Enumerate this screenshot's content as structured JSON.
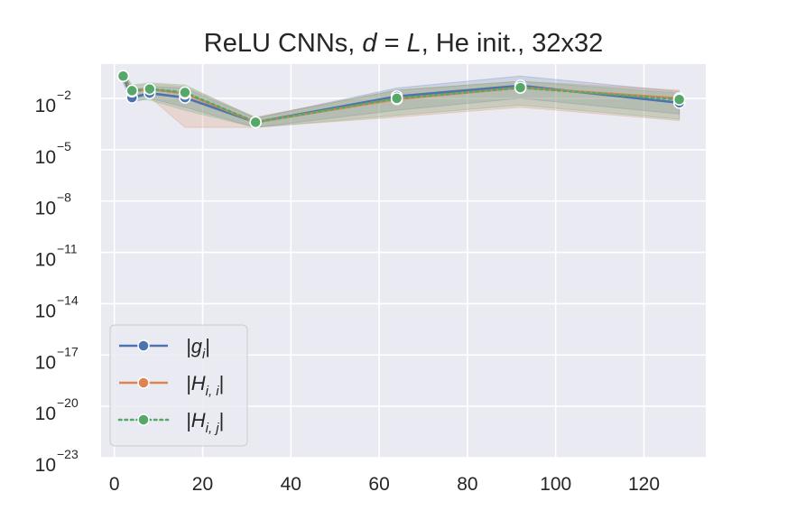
{
  "chart_data": {
    "type": "line",
    "title": "ReLU CNNs, d = L, He init., 32x32",
    "title_parts": {
      "prefix": "ReLU CNNs, ",
      "italic1": "d",
      "eq": " = ",
      "italic2": "L",
      "suffix": ", He init., 32x32"
    },
    "xlabel": "",
    "ylabel": "",
    "xlim": [
      -3,
      134
    ],
    "ylim": [
      1e-23,
      1.0
    ],
    "y_scale": "log",
    "x_ticks": [
      0,
      20,
      40,
      60,
      80,
      100,
      120
    ],
    "x_tick_labels": [
      "0",
      "20",
      "40",
      "60",
      "80",
      "100",
      "120"
    ],
    "y_ticks": [
      1e-23,
      1e-20,
      1e-17,
      1e-14,
      1e-11,
      1e-08,
      1e-05,
      0.01
    ],
    "y_tick_labels": [
      {
        "base": "10",
        "exp": "−23"
      },
      {
        "base": "10",
        "exp": "−20"
      },
      {
        "base": "10",
        "exp": "−17"
      },
      {
        "base": "10",
        "exp": "−14"
      },
      {
        "base": "10",
        "exp": "−11"
      },
      {
        "base": "10",
        "exp": "−8"
      },
      {
        "base": "10",
        "exp": "−5"
      },
      {
        "base": "10",
        "exp": "−2"
      }
    ],
    "grid": true,
    "legend_position": "lower-left",
    "background_color": "#eaeaf2",
    "grid_color": "#ffffff",
    "x": [
      2,
      4,
      8,
      16,
      32,
      64,
      92,
      128
    ],
    "series": [
      {
        "name": "|g_i|",
        "legend_main": "|g",
        "legend_sub": "i",
        "legend_close": "|",
        "color": "#4c72b0",
        "linestyle": "solid",
        "values": [
          0.2,
          0.011,
          0.02,
          0.011,
          0.0004,
          0.013,
          0.055,
          0.0055
        ],
        "lower": [
          0.08,
          0.006,
          0.01,
          0.003,
          0.0002,
          0.002,
          0.01,
          0.0012
        ],
        "upper": [
          0.4,
          0.03,
          0.05,
          0.04,
          0.0007,
          0.04,
          0.2,
          0.025
        ]
      },
      {
        "name": "|H_i,i|",
        "legend_main": "|H",
        "legend_sub": "i, i",
        "legend_close": "|",
        "color": "#dd8452",
        "linestyle": "solid",
        "values": [
          0.2,
          0.025,
          0.035,
          0.019,
          0.0004,
          0.009,
          0.042,
          0.01
        ],
        "lower": [
          0.1,
          0.01,
          0.012,
          0.0002,
          0.0002,
          0.0008,
          0.003,
          0.0005
        ],
        "upper": [
          0.35,
          0.05,
          0.07,
          0.05,
          0.0008,
          0.03,
          0.1,
          0.03
        ]
      },
      {
        "name": "|H_i,j|",
        "legend_main": "|H",
        "legend_sub": "i, j",
        "legend_close": "|",
        "color": "#55a868",
        "linestyle": "dotted",
        "values": [
          0.2,
          0.028,
          0.035,
          0.022,
          0.0004,
          0.01,
          0.042,
          0.0085
        ],
        "lower": [
          0.12,
          0.009,
          0.008,
          0.002,
          0.0002,
          0.001,
          0.004,
          0.0006
        ],
        "upper": [
          0.35,
          0.06,
          0.08,
          0.06,
          0.0007,
          0.03,
          0.1,
          0.02
        ]
      }
    ]
  }
}
